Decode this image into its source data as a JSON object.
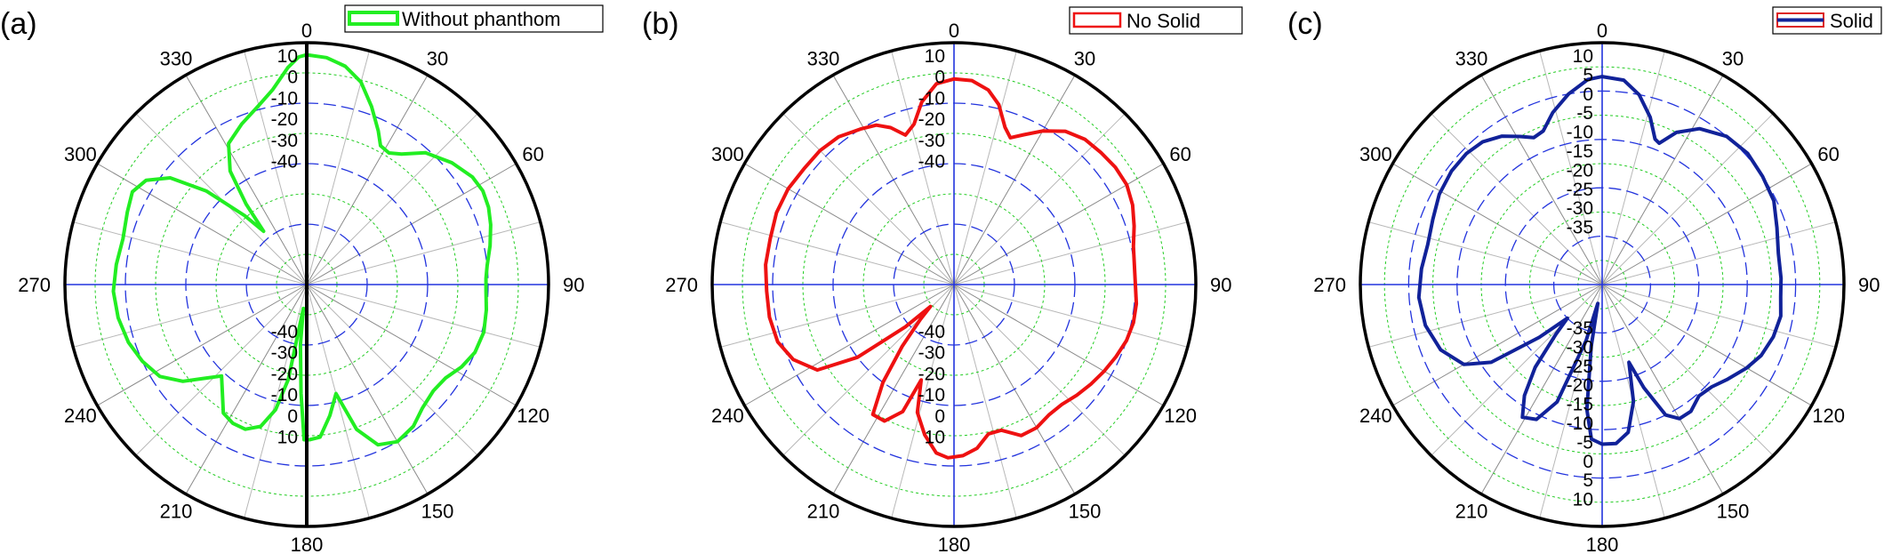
{
  "figure": {
    "panels": [
      {
        "label": "(a)"
      },
      {
        "label": "(b)"
      },
      {
        "label": "(c)"
      }
    ]
  },
  "chart_data": [
    {
      "type": "polar-line",
      "panel": "(a)",
      "legend": {
        "entries": [
          "Without phanthom"
        ],
        "placement": "top-right"
      },
      "angle_tick_labels": [
        "0",
        "30",
        "60",
        "90",
        "120",
        "150",
        "180",
        "210",
        "240",
        "270",
        "300",
        "330"
      ],
      "radial_tick_labels_upper": [
        "10",
        "0",
        "-10",
        "-20",
        "-30",
        "-40"
      ],
      "radial_tick_labels_lower": [
        "-40",
        "-30",
        "-20",
        "-10",
        "0",
        "10"
      ],
      "r_range": [
        -50,
        10
      ],
      "grid": true,
      "symmetry_axis_line": true,
      "series": [
        {
          "name": "Without phanthom",
          "color": "#22ee22",
          "points": [
            [
              0,
              7
            ],
            [
              5,
              6.5
            ],
            [
              10,
              5
            ],
            [
              15,
              2
            ],
            [
              20,
              -3
            ],
            [
              25,
              -8
            ],
            [
              28,
              -11
            ],
            [
              32,
              -11.5
            ],
            [
              36,
              -10
            ],
            [
              42,
              -6
            ],
            [
              50,
              -3
            ],
            [
              57,
              -1
            ],
            [
              62,
              -0.5
            ],
            [
              67,
              -1
            ],
            [
              72,
              -2
            ],
            [
              78,
              -3.5
            ],
            [
              84,
              -5
            ],
            [
              88,
              -5.5
            ],
            [
              92,
              -5.5
            ],
            [
              98,
              -5
            ],
            [
              105,
              -4.5
            ],
            [
              112,
              -5
            ],
            [
              118,
              -6.5
            ],
            [
              124,
              -8.5
            ],
            [
              130,
              -9
            ],
            [
              137,
              -8
            ],
            [
              143,
              -6
            ],
            [
              150,
              -5
            ],
            [
              156,
              -6.5
            ],
            [
              161,
              -12
            ],
            [
              165,
              -22
            ],
            [
              170,
              -17
            ],
            [
              175,
              -12
            ],
            [
              179,
              -11.5
            ],
            [
              181,
              -11.5
            ],
            [
              183,
              -23
            ],
            [
              186,
              -35
            ],
            [
              188,
              -44
            ],
            [
              191,
              -26
            ],
            [
              194,
              -18
            ],
            [
              198,
              -13
            ],
            [
              203,
              -11
            ],
            [
              208,
              -11
            ],
            [
              213,
              -12
            ],
            [
              218,
              -16
            ],
            [
              223,
              -19
            ],
            [
              227,
              -16
            ],
            [
              232,
              -11
            ],
            [
              238,
              -7
            ],
            [
              245,
              -5
            ],
            [
              252,
              -3.5
            ],
            [
              260,
              -2.5
            ],
            [
              268,
              -2
            ],
            [
              276,
              -2.5
            ],
            [
              284,
              -3
            ],
            [
              292,
              -2
            ],
            [
              298,
              -1
            ],
            [
              303,
              -2.5
            ],
            [
              308,
              -7
            ],
            [
              313,
              -16
            ],
            [
              318,
              -27
            ],
            [
              321,
              -33
            ],
            [
              323,
              -25
            ],
            [
              326,
              -16
            ],
            [
              331,
              -10
            ],
            [
              338,
              -7
            ],
            [
              345,
              -4
            ],
            [
              350,
              -1
            ],
            [
              355,
              4
            ],
            [
              358,
              6.5
            ],
            [
              360,
              7
            ]
          ]
        }
      ]
    },
    {
      "type": "polar-line",
      "panel": "(b)",
      "legend": {
        "entries": [
          "No Solid"
        ],
        "placement": "top-right"
      },
      "angle_tick_labels": [
        "0",
        "30",
        "60",
        "90",
        "120",
        "150",
        "180",
        "210",
        "240",
        "270",
        "300",
        "330"
      ],
      "radial_tick_labels_upper": [
        "10",
        "0",
        "-10",
        "-20",
        "-30",
        "-40"
      ],
      "radial_tick_labels_lower": [
        "-40",
        "-30",
        "-20",
        "-10",
        "0",
        "10"
      ],
      "r_range": [
        -50,
        10
      ],
      "grid": true,
      "series": [
        {
          "name": "No Solid",
          "color": "#ee1111",
          "points": [
            [
              0,
              1
            ],
            [
              5,
              0.8
            ],
            [
              10,
              -1
            ],
            [
              14,
              -4
            ],
            [
              18,
              -9
            ],
            [
              21,
              -11
            ],
            [
              25,
              -9
            ],
            [
              30,
              -6
            ],
            [
              36,
              -3
            ],
            [
              42,
              -1.5
            ],
            [
              48,
              -1
            ],
            [
              54,
              -0.5
            ],
            [
              60,
              -0.5
            ],
            [
              66,
              -1.5
            ],
            [
              72,
              -3
            ],
            [
              78,
              -4.5
            ],
            [
              84,
              -5
            ],
            [
              90,
              -5
            ],
            [
              96,
              -4.5
            ],
            [
              102,
              -4.5
            ],
            [
              108,
              -5
            ],
            [
              114,
              -6
            ],
            [
              120,
              -7
            ],
            [
              126,
              -8
            ],
            [
              132,
              -9
            ],
            [
              138,
              -10
            ],
            [
              144,
              -10
            ],
            [
              150,
              -9
            ],
            [
              156,
              -9
            ],
            [
              162,
              -12
            ],
            [
              167,
              -12
            ],
            [
              172,
              -9
            ],
            [
              177,
              -7.5
            ],
            [
              182,
              -7
            ],
            [
              186,
              -8
            ],
            [
              191,
              -12
            ],
            [
              196,
              -17
            ],
            [
              199,
              -25
            ],
            [
              202,
              -16
            ],
            [
              207,
              -12
            ],
            [
              212,
              -12
            ],
            [
              216,
              -20
            ],
            [
              220,
              -30
            ],
            [
              224,
              -38
            ],
            [
              227,
              -42
            ],
            [
              229,
              -34
            ],
            [
              233,
              -20
            ],
            [
              238,
              -10
            ],
            [
              245,
              -6
            ],
            [
              252,
              -4
            ],
            [
              260,
              -3.5
            ],
            [
              268,
              -3.5
            ],
            [
              276,
              -3
            ],
            [
              284,
              -3
            ],
            [
              292,
              -2.5
            ],
            [
              300,
              -2.5
            ],
            [
              308,
              -3
            ],
            [
              315,
              -3
            ],
            [
              322,
              -3.5
            ],
            [
              329,
              -5
            ],
            [
              334,
              -6
            ],
            [
              338,
              -8
            ],
            [
              342,
              -11
            ],
            [
              346,
              -9
            ],
            [
              350,
              -4
            ],
            [
              355,
              0
            ],
            [
              360,
              1
            ]
          ]
        }
      ]
    },
    {
      "type": "polar-line",
      "panel": "(c)",
      "legend": {
        "entries": [
          "Solid"
        ],
        "placement": "top-right"
      },
      "angle_tick_labels": [
        "0",
        "30",
        "60",
        "90",
        "120",
        "150",
        "180",
        "210",
        "240",
        "270",
        "300",
        "330"
      ],
      "radial_tick_labels_upper": [
        "10",
        "5",
        "0",
        "-5",
        "-10",
        "-15",
        "-20",
        "-25",
        "-30",
        "-35"
      ],
      "radial_tick_labels_lower": [
        "-35",
        "-30",
        "-25",
        "-20",
        "-15",
        "-10",
        "-5",
        "0",
        "5",
        "10"
      ],
      "r_range": [
        -40,
        10
      ],
      "grid": true,
      "series": [
        {
          "name": "Solid",
          "color": "#112299",
          "points": [
            [
              0,
              3
            ],
            [
              6,
              2.5
            ],
            [
              11,
              0
            ],
            [
              16,
              -4
            ],
            [
              20,
              -8
            ],
            [
              22,
              -8.5
            ],
            [
              26,
              -5
            ],
            [
              32,
              -2
            ],
            [
              40,
              0
            ],
            [
              48,
              0.5
            ],
            [
              56,
              0
            ],
            [
              64,
              -0.5
            ],
            [
              72,
              -2
            ],
            [
              80,
              -3
            ],
            [
              88,
              -3
            ],
            [
              94,
              -3
            ],
            [
              100,
              -2.5
            ],
            [
              107,
              -3
            ],
            [
              114,
              -4
            ],
            [
              120,
              -5.5
            ],
            [
              127,
              -7.5
            ],
            [
              133,
              -9
            ],
            [
              139,
              -9.5
            ],
            [
              145,
              -8
            ],
            [
              150,
              -8
            ],
            [
              154,
              -10
            ],
            [
              158,
              -17
            ],
            [
              161,
              -23
            ],
            [
              165,
              -15
            ],
            [
              170,
              -9
            ],
            [
              175,
              -7
            ],
            [
              180,
              -7
            ],
            [
              184,
              -8
            ],
            [
              187,
              -14
            ],
            [
              190,
              -27
            ],
            [
              193,
              -36
            ],
            [
              196,
              -28
            ],
            [
              201,
              -14
            ],
            [
              206,
              -9
            ],
            [
              211,
              -8
            ],
            [
              215,
              -12
            ],
            [
              219,
              -18
            ],
            [
              223,
              -26
            ],
            [
              226,
              -30
            ],
            [
              230,
              -23
            ],
            [
              235,
              -12
            ],
            [
              240,
              -7
            ],
            [
              248,
              -4
            ],
            [
              257,
              -2.5
            ],
            [
              266,
              -2
            ],
            [
              275,
              -2.5
            ],
            [
              283,
              -3
            ],
            [
              291,
              -2.5
            ],
            [
              299,
              -1.5
            ],
            [
              307,
              -1
            ],
            [
              314,
              -1
            ],
            [
              320,
              -1.5
            ],
            [
              326,
              -3
            ],
            [
              331,
              -5
            ],
            [
              335,
              -6.5
            ],
            [
              339,
              -6
            ],
            [
              344,
              -3
            ],
            [
              350,
              0
            ],
            [
              356,
              2.5
            ],
            [
              360,
              3
            ]
          ]
        }
      ]
    }
  ]
}
